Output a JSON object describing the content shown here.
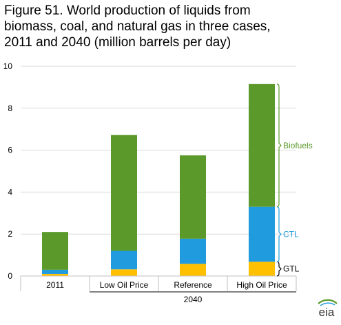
{
  "title_lines": [
    "Figure 51. World production of liquids from",
    "biomass, coal, and natural gas in three cases,",
    "2011 and 2040 (million barrels per day)"
  ],
  "chart_data": {
    "type": "bar",
    "stacked": true,
    "title": "Figure 51. World production of liquids from biomass, coal, and natural gas in three cases, 2011 and 2040 (million barrels per day)",
    "categories": [
      "2011",
      "Low Oil Price",
      "Reference",
      "High Oil Price"
    ],
    "group_label": "2040",
    "series": [
      {
        "name": "GTL",
        "values": [
          0.1,
          0.32,
          0.58,
          0.68
        ],
        "color": "#FFC000"
      },
      {
        "name": "CTL",
        "values": [
          0.2,
          0.88,
          1.2,
          2.62
        ],
        "color": "#1F9BDE"
      },
      {
        "name": "Biofuels",
        "values": [
          1.8,
          5.52,
          3.97,
          5.85
        ],
        "color": "#5B9A2A"
      }
    ],
    "yticks": [
      "0",
      "2",
      "4",
      "6",
      "8",
      "10"
    ],
    "ylim": [
      0,
      10
    ],
    "grid": true,
    "legend": "right-side brackets"
  },
  "logo_text": "eia"
}
